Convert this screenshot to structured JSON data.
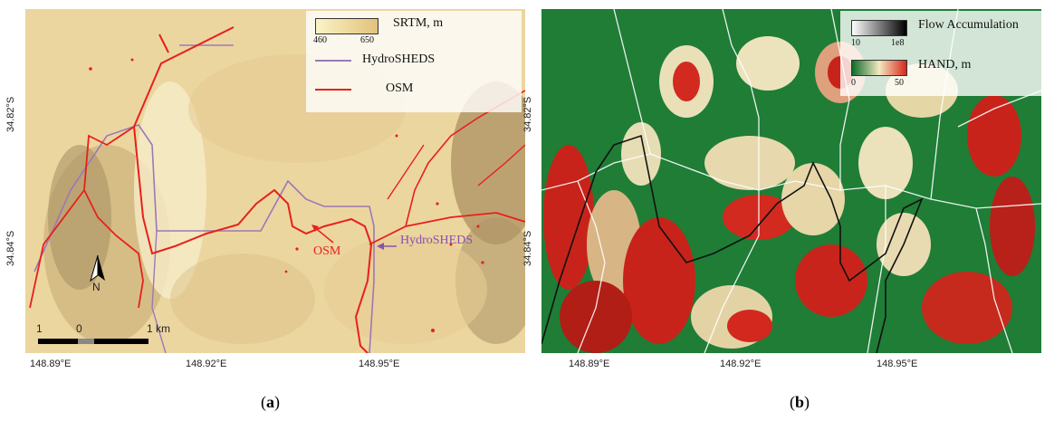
{
  "panel_a": {
    "caption": "a",
    "legend": {
      "srtm_label": "SRTM, m",
      "srtm_min": "460",
      "srtm_max": "650",
      "hydrosheds_label": "HydroSHEDS",
      "osm_label": "OSM",
      "colors": {
        "srtm_low": "#fbf3c6",
        "srtm_high": "#e2c27a",
        "hydrosheds": "#9b78b8",
        "osm": "#e8201b"
      }
    },
    "annotations": {
      "osm": "OSM",
      "hydrosheds": "HydroSHEDS"
    },
    "north_arrow": "N",
    "scale_bar": {
      "left": "1",
      "mid": "0",
      "right": "1 km"
    },
    "x_ticks": [
      "148.89°E",
      "148.92°E",
      "148.95°E"
    ],
    "y_ticks": [
      "34.82°S",
      "34.84°S"
    ]
  },
  "panel_b": {
    "caption": "b",
    "legend": {
      "flow_label": "Flow Accumulation",
      "flow_min": "10",
      "flow_max": "1e8",
      "hand_label": "HAND, m",
      "hand_min": "0",
      "hand_max": "50",
      "colors": {
        "hand_low": "#0d6b2a",
        "hand_mid": "#f2e9c0",
        "hand_high": "#d8271c",
        "flow_low": "#ffffff",
        "flow_high": "#000000"
      }
    },
    "x_ticks": [
      "148.89°E",
      "148.92°E",
      "148.95°E"
    ],
    "y_ticks": [
      "34.82°S",
      "34.84°S"
    ]
  }
}
